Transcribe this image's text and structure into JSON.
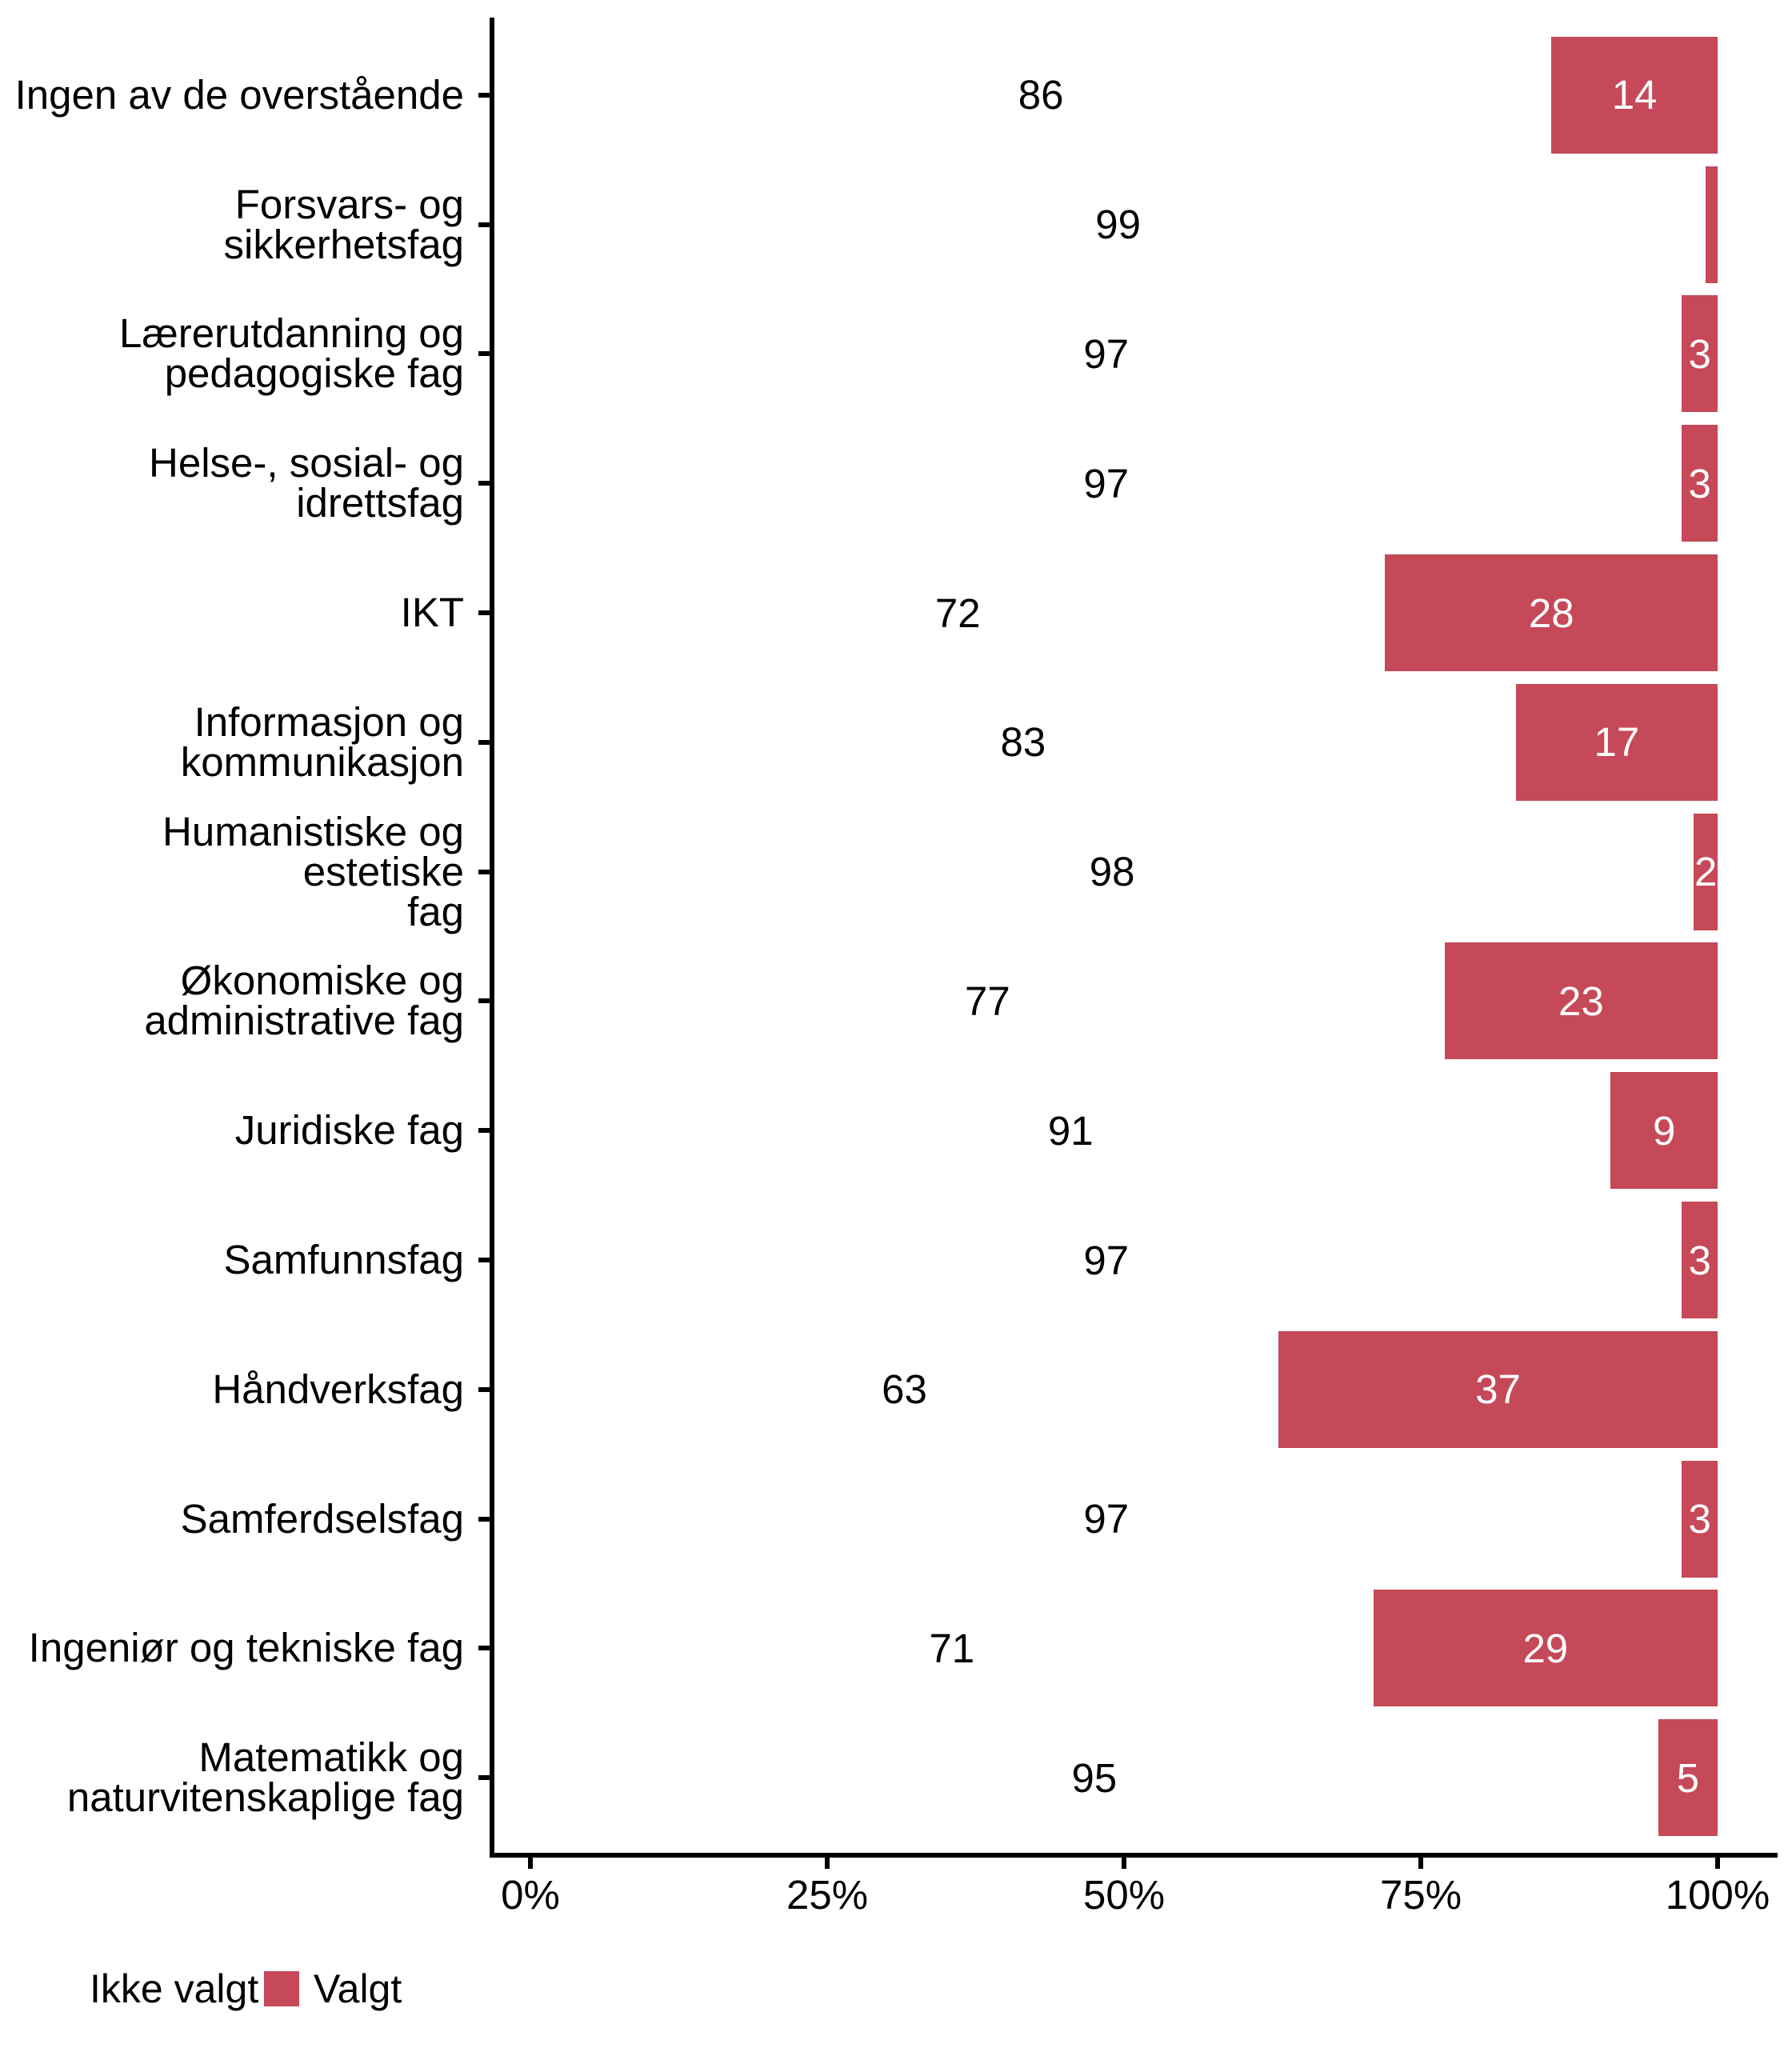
{
  "chart_data": {
    "type": "bar",
    "orientation": "horizontal",
    "stacked": true,
    "title": "",
    "xlabel": "",
    "ylabel": "",
    "unit": "%",
    "xlim": [
      0,
      100
    ],
    "grid": false,
    "legend_position": "bottom-left",
    "legend": [
      "Ikke valgt",
      "Valgt"
    ],
    "categories": [
      "Ingen av de overstående",
      "Forsvars- og sikkerhetsfag",
      "Lærerutdanning og pedagogiske fag",
      "Helse-, sosial- og idrettsfag",
      "IKT",
      "Informasjon og kommunikasjon",
      "Humanistiske og estetiske fag",
      "Økonomiske og administrative fag",
      "Juridiske fag",
      "Samfunnsfag",
      "Håndverksfag",
      "Samferdselsfag",
      "Ingeniør og tekniske fag",
      "Matematikk og naturvitenskaplige fag"
    ],
    "category_display_lines": [
      [
        "Ingen av de overstående"
      ],
      [
        "Forsvars- og",
        "sikkerhetsfag"
      ],
      [
        "Lærerutdanning og",
        "pedagogiske fag"
      ],
      [
        "Helse-, sosial- og",
        "idrettsfag"
      ],
      [
        "IKT"
      ],
      [
        "Informasjon og",
        "kommunikasjon"
      ],
      [
        "Humanistiske og estetiske",
        "fag"
      ],
      [
        "Økonomiske og",
        "administrative fag"
      ],
      [
        "Juridiske fag"
      ],
      [
        "Samfunnsfag"
      ],
      [
        "Håndverksfag"
      ],
      [
        "Samferdselsfag"
      ],
      [
        "Ingeniør og tekniske fag"
      ],
      [
        "Matematikk og",
        "naturvitenskaplige fag"
      ]
    ],
    "series": [
      {
        "name": "Ikke valgt",
        "color": "#FFFFFF",
        "values": [
          86,
          99,
          97,
          97,
          72,
          83,
          98,
          77,
          91,
          97,
          63,
          97,
          71,
          95
        ]
      },
      {
        "name": "Valgt",
        "color": "#C64959",
        "values": [
          14,
          1,
          3,
          3,
          28,
          17,
          2,
          23,
          9,
          3,
          37,
          3,
          29,
          5
        ]
      }
    ],
    "value_labels": {
      "ikke_valgt": [
        "86",
        "99",
        "97",
        "97",
        "72",
        "83",
        "98",
        "77",
        "91",
        "97",
        "63",
        "97",
        "71",
        "95"
      ],
      "valgt": [
        "14",
        "",
        "3",
        "3",
        "28",
        "17",
        "2",
        "23",
        "9",
        "3",
        "37",
        "3",
        "29",
        "5"
      ]
    },
    "x_ticks": [
      "0%",
      "25%",
      "50%",
      "75%",
      "100%"
    ],
    "x_tick_values": [
      0,
      25,
      50,
      75,
      100
    ]
  },
  "colors": {
    "valgt": "#C64959",
    "ikke_valgt": "#FFFFFF",
    "axis": "#000000",
    "text": "#000000",
    "bar_label_on_red": "#FFFFFF",
    "bar_label_on_white": "#000000",
    "background": "#FFFFFF"
  }
}
